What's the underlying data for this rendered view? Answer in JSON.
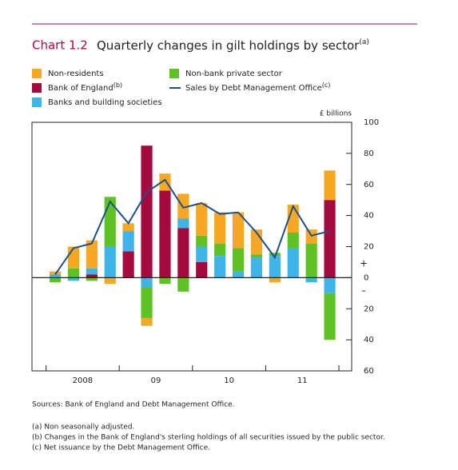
{
  "chart_data": {
    "type": "bar",
    "chart_number": "Chart 1.2",
    "title": "Quarterly changes in gilt holdings by sector",
    "title_note": "(a)",
    "y_unit_label": "£ billions",
    "sign_labels": [
      "+",
      "–"
    ],
    "categories": [
      null,
      null,
      null,
      null,
      null,
      null,
      null,
      null,
      null,
      null,
      null,
      null,
      null,
      null,
      null,
      null
    ],
    "year_labels": [
      "2008",
      "09",
      "10",
      "11"
    ],
    "stacked": true,
    "series": [
      {
        "name": "Non-residents",
        "color": "#f7a823",
        "values": [
          2,
          14,
          18,
          -4,
          5,
          -5,
          11,
          16,
          21,
          20,
          23,
          16,
          -3,
          18,
          9,
          19
        ]
      },
      {
        "name": "Bank of England",
        "name_note": "(b)",
        "color": "#a6093d",
        "values": [
          0,
          0,
          2,
          0,
          17,
          85,
          56,
          32,
          10,
          0,
          0,
          0,
          0,
          0,
          0,
          50
        ]
      },
      {
        "name": "Banks and building societies",
        "color": "#3fb4e8",
        "values": [
          2,
          -2,
          4,
          20,
          13,
          -6,
          0,
          6,
          10,
          14,
          4,
          13,
          14,
          19,
          -3,
          -10
        ]
      },
      {
        "name": "Non-bank private sector",
        "color": "#5dc324",
        "values": [
          -3,
          6,
          -2,
          32,
          0,
          -20,
          -4,
          -9,
          7,
          8,
          15,
          2,
          2,
          10,
          22,
          -30
        ]
      },
      {
        "name": "Sales by Debt Management Office",
        "name_note": "(c)",
        "color": "#1f4e8c",
        "type": "line",
        "values": [
          2,
          19,
          22,
          49,
          35,
          55,
          63,
          45,
          48,
          41,
          42,
          29,
          13,
          46,
          27,
          30
        ]
      }
    ],
    "ylim": [
      -60,
      100
    ],
    "yticks": [
      100,
      80,
      60,
      40,
      20,
      0,
      {
        "value": -20,
        "label": "20"
      },
      {
        "value": -40,
        "label": "40"
      },
      {
        "value": -60,
        "label": "60"
      }
    ],
    "grid": false,
    "legend": "top-left",
    "sources": "Sources: Bank of England and Debt Management Office.",
    "footnotes": [
      "(a) Non seasonally adjusted.",
      "(b) Changes in the Bank of England's sterling holdings of all securities issued by the public sector.",
      "(c) Net issuance by the Debt Management Office."
    ]
  }
}
